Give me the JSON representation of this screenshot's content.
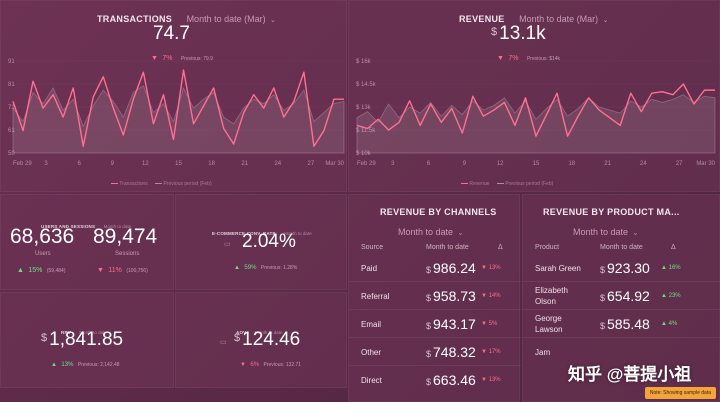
{
  "colors": {
    "accent": "#ff6f92",
    "up": "#6fe07a",
    "down": "#ff6b8a",
    "note": "#f3a53b"
  },
  "transactions": {
    "title": "TRANSACTIONS",
    "period": "Month to date (Mar)",
    "value": "74.7",
    "delta": "7%",
    "previous": "Previous: 79.9",
    "legend_current": "Transactions",
    "legend_previous": "Previous period (Feb)",
    "yticks": [
      "91",
      "81",
      "71",
      "61",
      "50"
    ],
    "xticks": [
      "Feb 29",
      "3",
      "6",
      "9",
      "12",
      "15",
      "18",
      "21",
      "24",
      "27",
      "Mar 30"
    ]
  },
  "revenue": {
    "title": "REVENUE",
    "period": "Month to date (Mar)",
    "currency": "$",
    "value": "13.1k",
    "delta": "7%",
    "previous": "Previous: $14k",
    "legend_current": "Revenue",
    "legend_previous": "Previous period (Feb)",
    "yticks": [
      "$ 16k",
      "$ 14.5k",
      "$ 13k",
      "$ 11.5k",
      "$ 10k"
    ],
    "xticks": [
      "Feb 29",
      "3",
      "6",
      "9",
      "12",
      "15",
      "18",
      "21",
      "24",
      "27",
      "Mar 30"
    ]
  },
  "chart_data": [
    {
      "type": "line",
      "title": "TRANSACTIONS",
      "ylim": [
        50,
        91
      ],
      "series": [
        {
          "name": "Transactions",
          "values": [
            73,
            60,
            82,
            70,
            76,
            66,
            79,
            53,
            75,
            84,
            70,
            58,
            74,
            86,
            63,
            76,
            56,
            87,
            63,
            71,
            79,
            61,
            54,
            68,
            76,
            70,
            79,
            66,
            73,
            86,
            53,
            60,
            74,
            74
          ]
        },
        {
          "name": "Previous period (Feb)",
          "values": [
            70,
            64,
            77,
            72,
            79,
            69,
            74,
            62,
            71,
            78,
            73,
            66,
            77,
            80,
            68,
            72,
            64,
            79,
            70,
            74,
            77,
            66,
            63,
            70,
            74,
            72,
            76,
            69,
            72,
            78,
            64,
            68,
            72,
            73
          ]
        }
      ]
    },
    {
      "type": "line",
      "title": "REVENUE",
      "ylim": [
        10000,
        16000
      ],
      "series": [
        {
          "name": "Revenue",
          "values": [
            11800,
            11600,
            12200,
            11500,
            12000,
            13400,
            11800,
            13200,
            12000,
            12900,
            11300,
            13700,
            12400,
            12800,
            13300,
            11800,
            13600,
            11100,
            12500,
            13900,
            11100,
            12400,
            13600,
            12800,
            12300,
            11800,
            13900,
            12700,
            13900,
            14000,
            13800,
            14500,
            13200,
            14100,
            14100
          ]
        },
        {
          "name": "Previous period (Feb)",
          "values": [
            12300,
            12700,
            12000,
            13200,
            12300,
            13000,
            12600,
            13300,
            12400,
            13100,
            12500,
            13400,
            12800,
            13100,
            13600,
            12600,
            13400,
            12200,
            12900,
            13500,
            12400,
            12900,
            13600,
            13000,
            12800,
            12600,
            13400,
            13000,
            13500,
            13300,
            13500,
            13800,
            13300,
            13700,
            13600
          ]
        }
      ]
    }
  ],
  "users_sessions": {
    "title": "USERS AND SESSIONS",
    "period": "Month to date",
    "users": "68,636",
    "users_label": "Users",
    "users_delta": "15%",
    "users_prev": "(59,484)",
    "sessions": "89,474",
    "sessions_label": "Sessions",
    "sessions_delta": "11%",
    "sessions_prev": "(100,756)"
  },
  "conv_rate": {
    "title": "E-COMMERCE CONV. RATE",
    "period": "Month to date",
    "value": "2.04%",
    "delta": "59%",
    "previous": "Previous: 1.28%"
  },
  "rpv": {
    "title": "RPV",
    "period": "Month to date",
    "currency": "$",
    "value": "1,841.85",
    "delta": "13%",
    "previous": "Previous: 2,142.48"
  },
  "aov": {
    "title": "AOV",
    "period": "Month to date",
    "currency": "$",
    "value": "124.46",
    "delta": "6%",
    "previous": "Previous: 132.71"
  },
  "channels": {
    "title": "REVENUE BY CHANNELS",
    "period": "Month to date",
    "col_source": "Source",
    "col_value": "Month to date",
    "col_delta": "Δ",
    "rows": [
      {
        "label": "Paid",
        "value": "986.24",
        "delta": "13%",
        "dir": "down"
      },
      {
        "label": "Referral",
        "value": "958.73",
        "delta": "14%",
        "dir": "down"
      },
      {
        "label": "Email",
        "value": "943.17",
        "delta": "5%",
        "dir": "down"
      },
      {
        "label": "Other",
        "value": "748.32",
        "delta": "17%",
        "dir": "down"
      },
      {
        "label": "Direct",
        "value": "663.46",
        "delta": "13%",
        "dir": "down"
      }
    ]
  },
  "product_managers": {
    "title": "REVENUE BY PRODUCT MA...",
    "period": "Month to date",
    "col_product": "Product",
    "col_value": "Month to date",
    "col_delta": "Δ",
    "rows": [
      {
        "label": "Sarah Green",
        "label2": "",
        "value": "923.30",
        "delta": "16%",
        "dir": "up"
      },
      {
        "label": "Elizabeth",
        "label2": "Olson",
        "value": "654.92",
        "delta": "23%",
        "dir": "up"
      },
      {
        "label": "George",
        "label2": "Lawson",
        "value": "585.48",
        "delta": "4%",
        "dir": "up"
      },
      {
        "label": "Jam",
        "label2": "",
        "value": "",
        "delta": "",
        "dir": "up"
      }
    ]
  },
  "watermark": "知乎 @菩提小祖",
  "note": "Note: Showing sample data"
}
